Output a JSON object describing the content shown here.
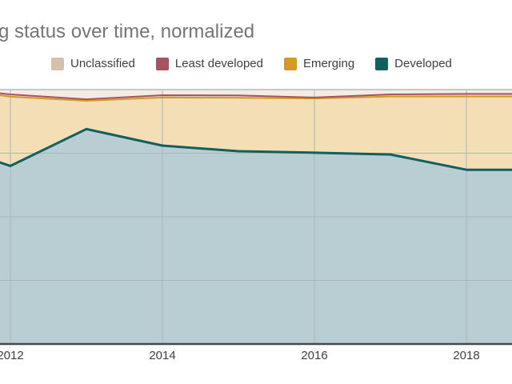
{
  "title": "g status over time, normalized",
  "legend": {
    "items": [
      {
        "label": "Unclassified",
        "color": "#d5c0ab"
      },
      {
        "label": "Least developed",
        "color": "#a5545f"
      },
      {
        "label": "Emerging",
        "color": "#d59a23"
      },
      {
        "label": "Developed",
        "color": "#11605e"
      }
    ]
  },
  "chart_data": {
    "type": "area",
    "stacked": true,
    "normalized": true,
    "title": "g status over time, normalized",
    "xlabel": "",
    "ylabel": "",
    "ylim": [
      0,
      100
    ],
    "x": [
      2011.85,
      2012,
      2013,
      2014,
      2015,
      2016,
      2017,
      2018,
      2018.66
    ],
    "x_ticks": [
      2012,
      2014,
      2016,
      2018
    ],
    "x_tick_labels": [
      "2012",
      "2014",
      "2016",
      "2018"
    ],
    "y_gridlines": [
      25,
      50,
      75
    ],
    "grid_color": "#a9b6ba",
    "top_border_color": "#c5cacc",
    "axis_color": "#45494c",
    "legend_position": "top",
    "series": [
      {
        "id": "developed",
        "name": "Developed",
        "line": "#11605e",
        "line_width": 3,
        "fill": "#b8ced3",
        "values": [
          71.5,
          70.0,
          84.5,
          78.0,
          75.8,
          75.2,
          74.5,
          68.5,
          68.5
        ]
      },
      {
        "id": "emerging",
        "name": "Emerging",
        "line": "#d59a23",
        "line_width": 2,
        "fill": "#f3deb6",
        "values": [
          26.3,
          27.2,
          11.1,
          18.9,
          21.0,
          21.3,
          22.8,
          28.8,
          28.8
        ]
      },
      {
        "id": "least-developed",
        "name": "Least developed",
        "line": "#a5545f",
        "line_width": 2,
        "fill": "#ecd3d5",
        "values": [
          0.8,
          0.9,
          0.6,
          0.9,
          0.9,
          0.4,
          0.8,
          1.0,
          1.0
        ]
      },
      {
        "id": "unclassified",
        "name": "Unclassified",
        "line": null,
        "line_width": 0,
        "fill": "#f4ece4",
        "values": [
          1.4,
          1.9,
          3.8,
          2.2,
          2.3,
          3.1,
          1.9,
          1.7,
          1.7
        ]
      }
    ]
  }
}
